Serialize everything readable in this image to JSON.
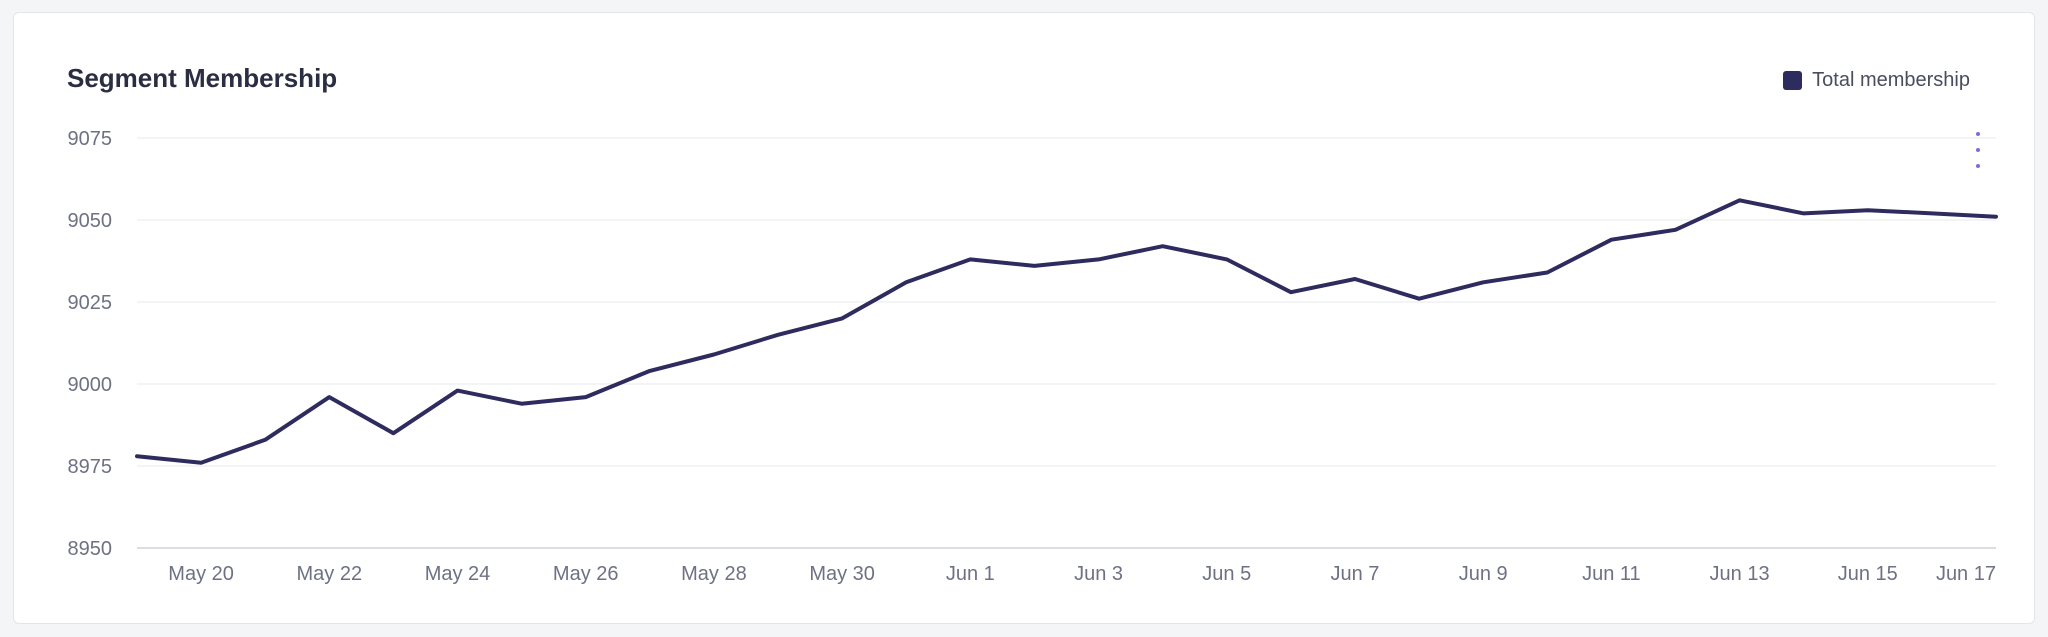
{
  "title": "Segment Membership",
  "legend": {
    "label": "Total membership",
    "color": "#2e2b5f"
  },
  "menu_icon": "more-vertical-icon",
  "chart_data": {
    "type": "line",
    "title": "Segment Membership",
    "xlabel": "",
    "ylabel": "",
    "ylim": [
      8950,
      9075
    ],
    "yticks": [
      8950,
      8975,
      9000,
      9025,
      9050,
      9075
    ],
    "grid": true,
    "legend_position": "top-right",
    "x_tick_labels": [
      "May 20",
      "May 22",
      "May 24",
      "May 26",
      "May 28",
      "May 30",
      "Jun 1",
      "Jun 3",
      "Jun 5",
      "Jun 7",
      "Jun 9",
      "Jun 11",
      "Jun 13",
      "Jun 15",
      "Jun 17"
    ],
    "x": [
      "May 19",
      "May 20",
      "May 21",
      "May 22",
      "May 23",
      "May 24",
      "May 25",
      "May 26",
      "May 27",
      "May 28",
      "May 29",
      "May 30",
      "May 31",
      "Jun 1",
      "Jun 2",
      "Jun 3",
      "Jun 4",
      "Jun 5",
      "Jun 6",
      "Jun 7",
      "Jun 8",
      "Jun 9",
      "Jun 10",
      "Jun 11",
      "Jun 12",
      "Jun 13",
      "Jun 14",
      "Jun 15",
      "Jun 16",
      "Jun 17"
    ],
    "series": [
      {
        "name": "Total membership",
        "color": "#2e2b5f",
        "values": [
          8978,
          8976,
          8983,
          8996,
          8985,
          8998,
          8994,
          8996,
          9004,
          9009,
          9015,
          9020,
          9031,
          9038,
          9036,
          9038,
          9042,
          9038,
          9028,
          9032,
          9026,
          9031,
          9034,
          9044,
          9047,
          9056,
          9052,
          9053,
          9052,
          9051
        ]
      }
    ]
  }
}
